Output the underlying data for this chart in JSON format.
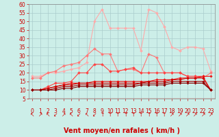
{
  "background_color": "#cceee8",
  "grid_color": "#aacccc",
  "xlabel": "Vent moyen/en rafales ( km/h )",
  "xlabel_color": "#cc0000",
  "xlabel_fontsize": 7,
  "tick_color": "#cc0000",
  "tick_fontsize": 5.5,
  "xlim": [
    -0.5,
    23.5
  ],
  "ylim": [
    5,
    60
  ],
  "yticks": [
    5,
    10,
    15,
    20,
    25,
    30,
    35,
    40,
    45,
    50,
    55,
    60
  ],
  "xticks": [
    0,
    1,
    2,
    3,
    4,
    5,
    6,
    7,
    8,
    9,
    10,
    11,
    12,
    13,
    14,
    15,
    16,
    17,
    18,
    19,
    20,
    21,
    22,
    23
  ],
  "lines": [
    {
      "color": "#ffaaaa",
      "marker": "D",
      "markersize": 2.0,
      "linewidth": 0.8,
      "data_x": [
        0,
        1,
        2,
        3,
        4,
        5,
        6,
        7,
        8,
        9,
        10,
        11,
        12,
        13,
        14,
        15,
        16,
        17,
        18,
        19,
        20,
        21,
        22,
        23
      ],
      "data_y": [
        18,
        18,
        20,
        20,
        21,
        22,
        23,
        26,
        50,
        57,
        46,
        46,
        46,
        46,
        33,
        57,
        55,
        47,
        35,
        33,
        35,
        35,
        34,
        21
      ]
    },
    {
      "color": "#ff7777",
      "marker": "D",
      "markersize": 2.0,
      "linewidth": 0.8,
      "data_x": [
        0,
        1,
        2,
        3,
        4,
        5,
        6,
        7,
        8,
        9,
        10,
        11,
        12,
        13,
        14,
        15,
        16,
        17,
        18,
        19,
        20,
        21,
        22,
        23
      ],
      "data_y": [
        17,
        17,
        20,
        21,
        24,
        25,
        26,
        30,
        34,
        31,
        31,
        21,
        22,
        22,
        20,
        31,
        29,
        20,
        20,
        20,
        18,
        18,
        17,
        20
      ]
    },
    {
      "color": "#ff4444",
      "marker": "D",
      "markersize": 2.0,
      "linewidth": 0.8,
      "data_x": [
        0,
        1,
        2,
        3,
        4,
        5,
        6,
        7,
        8,
        9,
        10,
        11,
        12,
        13,
        14,
        15,
        16,
        17,
        18,
        19,
        20,
        21,
        22,
        23
      ],
      "data_y": [
        10,
        10,
        12,
        14,
        14,
        15,
        20,
        20,
        25,
        25,
        21,
        21,
        22,
        23,
        20,
        20,
        20,
        20,
        20,
        20,
        18,
        18,
        18,
        10
      ]
    },
    {
      "color": "#ee1111",
      "marker": "D",
      "markersize": 1.8,
      "linewidth": 0.8,
      "data_x": [
        0,
        1,
        2,
        3,
        4,
        5,
        6,
        7,
        8,
        9,
        10,
        11,
        12,
        13,
        14,
        15,
        16,
        17,
        18,
        19,
        20,
        21,
        22,
        23
      ],
      "data_y": [
        10,
        10,
        11,
        12,
        13,
        14,
        14,
        14,
        15,
        15,
        15,
        15,
        15,
        15,
        15,
        15,
        16,
        16,
        16,
        17,
        17,
        17,
        18,
        18
      ]
    },
    {
      "color": "#cc0000",
      "marker": "D",
      "markersize": 1.8,
      "linewidth": 0.8,
      "data_x": [
        0,
        1,
        2,
        3,
        4,
        5,
        6,
        7,
        8,
        9,
        10,
        11,
        12,
        13,
        14,
        15,
        16,
        17,
        18,
        19,
        20,
        21,
        22,
        23
      ],
      "data_y": [
        10,
        10,
        11,
        12,
        13,
        13,
        14,
        14,
        14,
        14,
        14,
        14,
        14,
        14,
        14,
        15,
        15,
        15,
        16,
        16,
        17,
        17,
        17,
        10
      ]
    },
    {
      "color": "#aa0000",
      "marker": "D",
      "markersize": 1.8,
      "linewidth": 0.8,
      "data_x": [
        0,
        1,
        2,
        3,
        4,
        5,
        6,
        7,
        8,
        9,
        10,
        11,
        12,
        13,
        14,
        15,
        16,
        17,
        18,
        19,
        20,
        21,
        22,
        23
      ],
      "data_y": [
        10,
        10,
        10,
        11,
        12,
        12,
        13,
        13,
        13,
        13,
        13,
        13,
        13,
        13,
        14,
        14,
        14,
        14,
        15,
        15,
        15,
        15,
        15,
        10
      ]
    },
    {
      "color": "#880000",
      "marker": "D",
      "markersize": 1.8,
      "linewidth": 0.8,
      "data_x": [
        0,
        1,
        2,
        3,
        4,
        5,
        6,
        7,
        8,
        9,
        10,
        11,
        12,
        13,
        14,
        15,
        16,
        17,
        18,
        19,
        20,
        21,
        22,
        23
      ],
      "data_y": [
        10,
        10,
        10,
        10,
        11,
        11,
        12,
        12,
        12,
        12,
        12,
        12,
        12,
        12,
        13,
        13,
        13,
        13,
        14,
        14,
        14,
        14,
        14,
        10
      ]
    }
  ],
  "arrow_chars": [
    "↖",
    "↗",
    "↖",
    "↙",
    "↗",
    "↖",
    "↙",
    "↖",
    "↙",
    "↑",
    "↑",
    "↑",
    "↑",
    "↑",
    "↑",
    "↑",
    "↑",
    "↑",
    "↗",
    "↗",
    "↗",
    "↗",
    "↗",
    "↗"
  ]
}
